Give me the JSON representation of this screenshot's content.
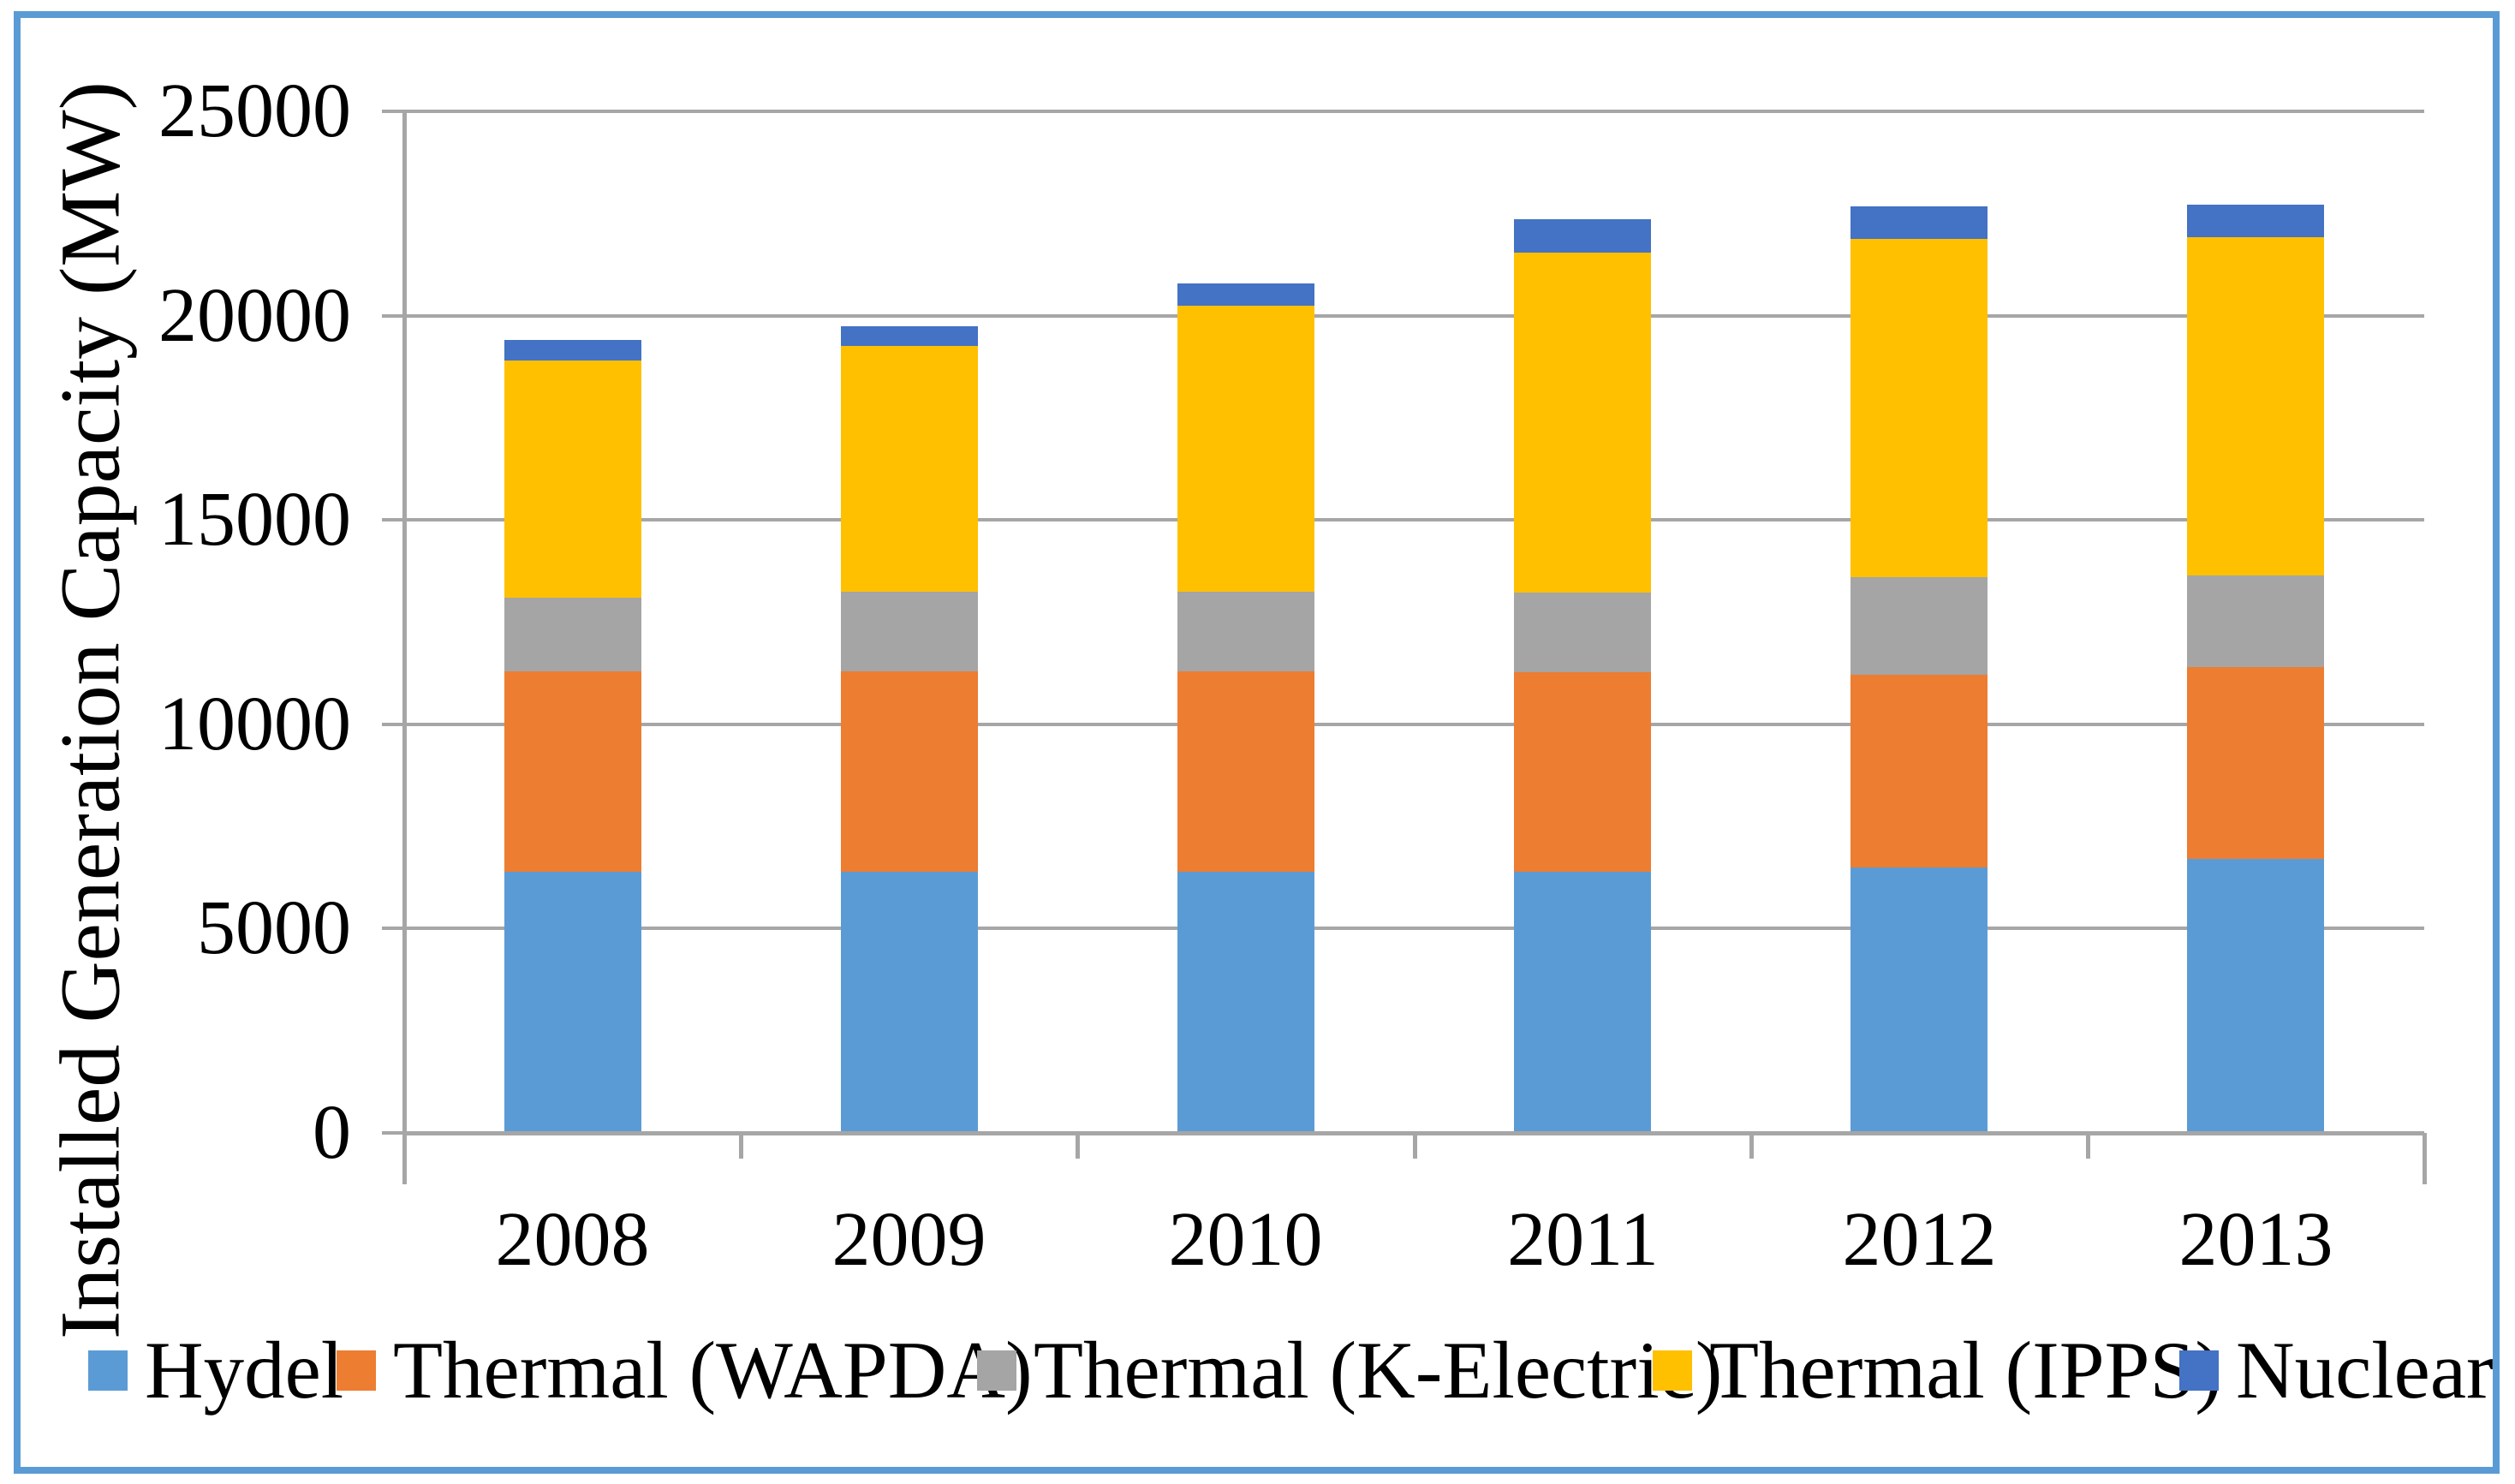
{
  "chart_data": {
    "type": "bar",
    "stacked": true,
    "title": "",
    "xlabel": "",
    "ylabel": "Installed Generation Capacity (MW)",
    "categories": [
      "2008",
      "2009",
      "2010",
      "2011",
      "2012",
      "2013"
    ],
    "series": [
      {
        "name": "Hydel",
        "color": "#5B9BD5",
        "values": [
          6400,
          6400,
          6400,
          6400,
          6500,
          6700
        ]
      },
      {
        "name": "Thermal (WAPDA)",
        "color": "#ED7D31",
        "values": [
          4900,
          4900,
          4900,
          4870,
          4720,
          4700
        ]
      },
      {
        "name": "Thermal (K-Electric)",
        "color": "#A5A5A5",
        "values": [
          1800,
          1950,
          1950,
          1960,
          2370,
          2250
        ]
      },
      {
        "name": "Thermal (IPPS)",
        "color": "#FFC000",
        "values": [
          5800,
          6000,
          7000,
          8320,
          8290,
          8270
        ]
      },
      {
        "name": "Nuclear",
        "color": "#4472C4",
        "values": [
          500,
          480,
          530,
          820,
          800,
          800
        ]
      }
    ],
    "ylim": [
      0,
      25000
    ],
    "ytick_step": 5000,
    "grid": true,
    "legend_position": "bottom"
  },
  "y_axis": {
    "title": "Installed Generation Capacity (MW)",
    "tick_labels": [
      "0",
      "5000",
      "10000",
      "15000",
      "20000",
      "25000"
    ]
  },
  "x_axis": {
    "tick_labels": [
      "2008",
      "2009",
      "2010",
      "2011",
      "2012",
      "2013"
    ]
  },
  "colors": {
    "grid": "#A6A6A6",
    "axis": "#A6A6A6",
    "frame_border": "#5B9BD5",
    "background": "#FFFFFF"
  }
}
